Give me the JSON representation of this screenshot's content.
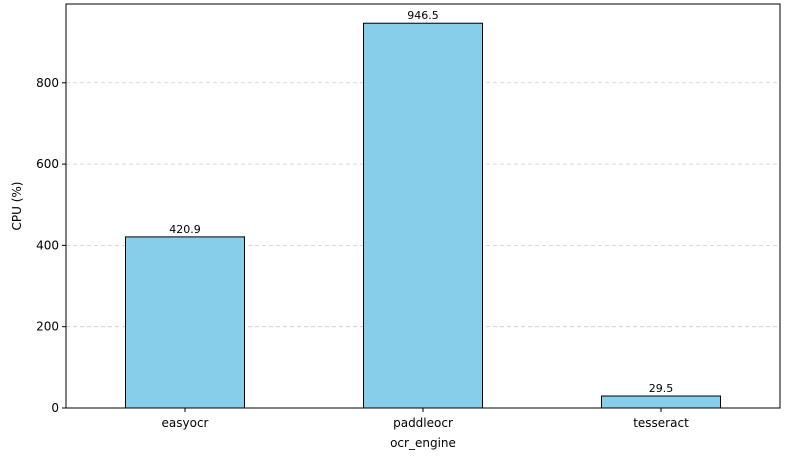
{
  "chart_data": {
    "type": "bar",
    "title": "",
    "xlabel": "ocr_engine",
    "ylabel": "CPU (%)",
    "categories": [
      "easyocr",
      "paddleocr",
      "tesseract"
    ],
    "values": [
      420.9,
      946.5,
      29.5
    ],
    "data_labels": [
      "420.9",
      "946.5",
      "29.5"
    ],
    "ylim": [
      0,
      993.8
    ],
    "yticks": [
      0,
      200,
      400,
      600,
      800
    ],
    "ytick_labels": [
      "0",
      "200",
      "400",
      "600",
      "800"
    ],
    "grid": "y-dashed",
    "legend": "none",
    "bar_color": "#87CEEB",
    "bar_edge_color": "#000000",
    "grid_color": "#cccccc"
  }
}
